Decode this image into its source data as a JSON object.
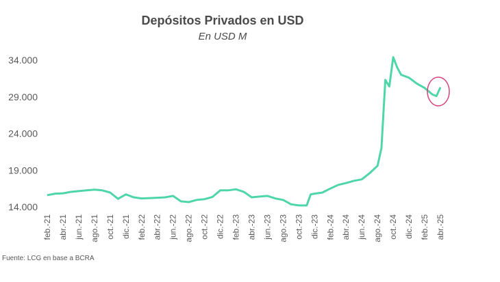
{
  "chart_data": {
    "type": "line",
    "title": "Depósitos Privados en USD",
    "subtitle": "En USD M",
    "source": "Fuente: LCG en base a BCRA",
    "ylim": [
      14000,
      34000
    ],
    "yticks": [
      "14.000",
      "19.000",
      "24.000",
      "29.000",
      "34.000"
    ],
    "ytick_values": [
      14000,
      19000,
      24000,
      29000,
      34000
    ],
    "xticks": [
      "feb.-21",
      "abr.-21",
      "jun.-21",
      "ago.-21",
      "oct.-21",
      "dic.-21",
      "feb.-22",
      "abr.-22",
      "jun.-22",
      "ago.-22",
      "oct.-22",
      "dic.-22",
      "feb.-23",
      "abr.-23",
      "jun.-23",
      "ago.-23",
      "oct.-23",
      "dic.-23",
      "feb.-24",
      "abr.-24",
      "jun.-24",
      "ago.-24",
      "oct.-24",
      "dic.-24",
      "feb.-25",
      "abr.-25"
    ],
    "grid": false,
    "line_color": "#4fd6a8",
    "annotation": {
      "type": "ellipse",
      "color": "#d6437a",
      "target": "abr.-25"
    },
    "series": [
      {
        "x": [
          "2021-02",
          "2021-03",
          "2021-04",
          "2021-05",
          "2021-06",
          "2021-07",
          "2021-08",
          "2021-09",
          "2021-10",
          "2021-11",
          "2021-12",
          "2022-01",
          "2022-02",
          "2022-03",
          "2022-04",
          "2022-05",
          "2022-06",
          "2022-07",
          "2022-08",
          "2022-09",
          "2022-10",
          "2022-11",
          "2022-12",
          "2023-01",
          "2023-02",
          "2023-03",
          "2023-04",
          "2023-05",
          "2023-06",
          "2023-07",
          "2023-08",
          "2023-09",
          "2023-10",
          "2023-11",
          "2023-11.5",
          "2023-12",
          "2024-01",
          "2024-02",
          "2024-03",
          "2024-04",
          "2024-05",
          "2024-06",
          "2024-07",
          "2024-08",
          "2024-08.5",
          "2024-09",
          "2024-09.5",
          "2024-10",
          "2024-10.5",
          "2024-11",
          "2024-12",
          "2025-01",
          "2025-02",
          "2025-03",
          "2025-03.5",
          "2025-04"
        ],
        "values": [
          15600,
          15800,
          15850,
          16050,
          16150,
          16250,
          16350,
          16250,
          15950,
          15100,
          15700,
          15300,
          15150,
          15200,
          15250,
          15300,
          15500,
          14750,
          14650,
          14950,
          15050,
          15350,
          16250,
          16250,
          16400,
          16050,
          15300,
          15400,
          15500,
          15150,
          14950,
          14350,
          14200,
          14200,
          15700,
          15800,
          15950,
          16500,
          17000,
          17250,
          17550,
          17750,
          18600,
          19600,
          22000,
          31300,
          30400,
          34400,
          33000,
          32000,
          31600,
          30800,
          30200,
          29300,
          29100,
          30300
        ]
      }
    ]
  }
}
